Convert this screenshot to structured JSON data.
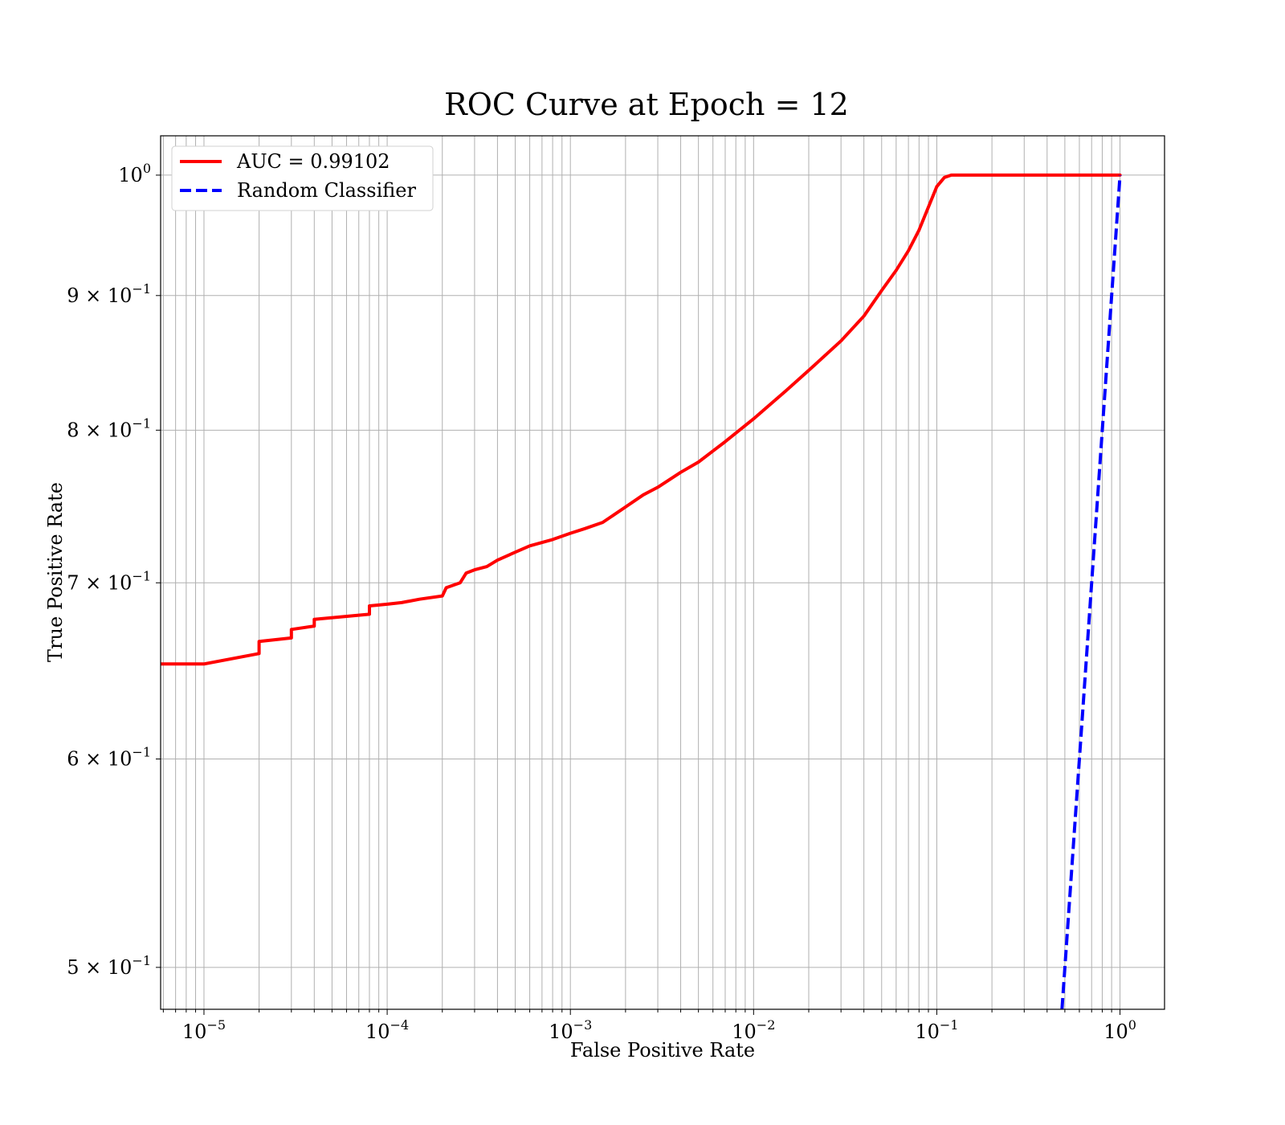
{
  "chart_data": {
    "type": "line",
    "title": "ROC Curve at Epoch = 12",
    "xlabel": "False Positive Rate",
    "ylabel": "True Positive Rate",
    "xscale": "log",
    "yscale": "log",
    "xlim": [
      5.8e-06,
      1.75
    ],
    "ylim": [
      0.482,
      1.035
    ],
    "grid": true,
    "grid_minor": true,
    "legend_position": "upper-left",
    "x_ticks": [
      {
        "value": 1e-05,
        "base": "10",
        "exp": "−5"
      },
      {
        "value": 0.0001,
        "base": "10",
        "exp": "−4"
      },
      {
        "value": 0.001,
        "base": "10",
        "exp": "−3"
      },
      {
        "value": 0.01,
        "base": "10",
        "exp": "−2"
      },
      {
        "value": 0.1,
        "base": "10",
        "exp": "−1"
      },
      {
        "value": 1,
        "base": "10",
        "exp": "0"
      }
    ],
    "y_ticks": [
      {
        "value": 1.0,
        "mant": "",
        "base": "10",
        "exp": "0"
      },
      {
        "value": 0.9,
        "mant": "9 × ",
        "base": "10",
        "exp": "−1"
      },
      {
        "value": 0.8,
        "mant": "8 × ",
        "base": "10",
        "exp": "−1"
      },
      {
        "value": 0.7,
        "mant": "7 × ",
        "base": "10",
        "exp": "−1"
      },
      {
        "value": 0.6,
        "mant": "6 × ",
        "base": "10",
        "exp": "−1"
      },
      {
        "value": 0.5,
        "mant": "5 × ",
        "base": "10",
        "exp": "−1"
      }
    ],
    "series": [
      {
        "name": "AUC = 0.99102",
        "color": "#ff0000",
        "style": "solid",
        "x": [
          5.8e-06,
          1e-05,
          2e-05,
          2e-05,
          3e-05,
          3e-05,
          4e-05,
          4e-05,
          8e-05,
          8e-05,
          0.0001,
          0.00012,
          0.00015,
          0.0002,
          0.00021,
          0.00025,
          0.00027,
          0.0003,
          0.00035,
          0.0004,
          0.0005,
          0.0006,
          0.0008,
          0.001,
          0.0012,
          0.0015,
          0.002,
          0.0025,
          0.003,
          0.004,
          0.005,
          0.007,
          0.01,
          0.015,
          0.02,
          0.03,
          0.04,
          0.05,
          0.06,
          0.07,
          0.08,
          0.1,
          0.11,
          0.12,
          0.15,
          0.2,
          0.5,
          1.0
        ],
        "y": [
          0.652,
          0.652,
          0.658,
          0.665,
          0.667,
          0.672,
          0.674,
          0.678,
          0.681,
          0.686,
          0.687,
          0.688,
          0.69,
          0.692,
          0.697,
          0.7,
          0.706,
          0.708,
          0.71,
          0.714,
          0.719,
          0.723,
          0.727,
          0.731,
          0.734,
          0.738,
          0.748,
          0.756,
          0.761,
          0.771,
          0.778,
          0.792,
          0.808,
          0.828,
          0.843,
          0.865,
          0.884,
          0.904,
          0.92,
          0.936,
          0.953,
          0.99,
          0.998,
          1.0,
          1.0,
          1.0,
          1.0,
          1.0
        ]
      },
      {
        "name": "Random Classifier",
        "color": "#0000ff",
        "style": "dashed",
        "x": [
          0.482,
          1.0
        ],
        "y": [
          0.482,
          1.0
        ]
      }
    ]
  }
}
